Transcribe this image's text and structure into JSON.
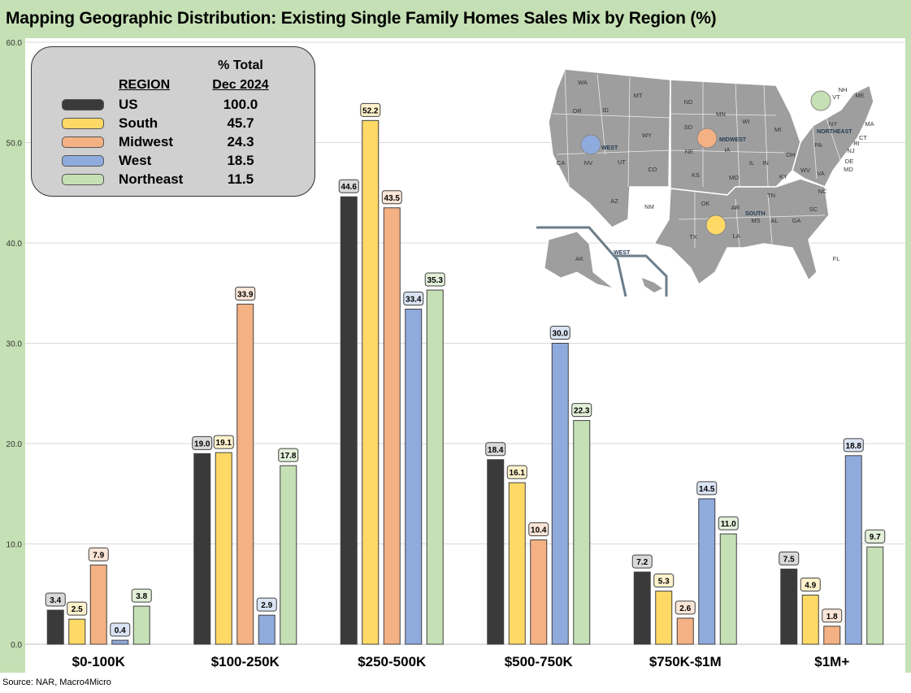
{
  "title": "Mapping Geographic Distribution: Existing Single Family Homes Sales Mix by Region (%)",
  "source": "Source: NAR, Macro4Micro",
  "legend": {
    "region_header": "REGION",
    "value_header_line1": "% Total",
    "value_header_line2": "Dec 2024",
    "entries": [
      {
        "name": "US",
        "value": "100.0",
        "color": "#3a3a3a"
      },
      {
        "name": "South",
        "value": "45.7",
        "color": "#ffd966"
      },
      {
        "name": "Midwest",
        "value": "24.3",
        "color": "#f4b183"
      },
      {
        "name": "West",
        "value": "18.5",
        "color": "#8faadc"
      },
      {
        "name": "Northeast",
        "value": "11.5",
        "color": "#c5e0b4"
      }
    ]
  },
  "map": {
    "region_labels": [
      "WEST",
      "MIDWEST",
      "NORTHEAST",
      "SOUTH",
      "WEST"
    ],
    "state_labels": [
      "WA",
      "OR",
      "ID",
      "MT",
      "WY",
      "CA",
      "NV",
      "UT",
      "CO",
      "AZ",
      "NM",
      "ND",
      "SD",
      "NE",
      "KS",
      "OK",
      "TX",
      "MN",
      "IA",
      "MO",
      "AR",
      "LA",
      "WI",
      "IL",
      "MI",
      "IN",
      "OH",
      "KY",
      "TN",
      "MS",
      "AL",
      "GA",
      "FL",
      "SC",
      "NC",
      "VA",
      "WV",
      "PA",
      "NY",
      "VT",
      "NH",
      "ME",
      "MA",
      "CT",
      "RI",
      "NJ",
      "DE",
      "MD",
      "AK"
    ],
    "markers": [
      {
        "region": "Northeast",
        "color": "#c5e0b4"
      },
      {
        "region": "Midwest",
        "color": "#f4b183"
      },
      {
        "region": "West",
        "color": "#8faadc"
      },
      {
        "region": "South",
        "color": "#ffd966"
      }
    ]
  },
  "chart_data": {
    "type": "bar",
    "title": "Mapping Geographic Distribution: Existing Single Family Homes Sales Mix by Region (%)",
    "xlabel": "",
    "ylabel": "",
    "ylim": [
      0,
      60
    ],
    "yticks": [
      "0.0",
      "10.0",
      "20.0",
      "30.0",
      "40.0",
      "50.0",
      "60.0"
    ],
    "grid": true,
    "legend_position": "top-left",
    "categories": [
      "$0-100K",
      "$100-250K",
      "$250-500K",
      "$500-750K",
      "$750K-$1M",
      "$1M+"
    ],
    "series": [
      {
        "name": "US",
        "color": "#3a3a3a",
        "label_bg": "#d9d9d9",
        "values": [
          3.4,
          19.0,
          44.6,
          18.4,
          7.2,
          7.5
        ],
        "labels": [
          "3.4",
          "19.0",
          "44.6",
          "18.4",
          "7.2",
          "7.5"
        ]
      },
      {
        "name": "South",
        "color": "#ffd966",
        "label_bg": "#fff2cc",
        "values": [
          2.5,
          19.1,
          52.2,
          16.1,
          5.3,
          4.9
        ],
        "labels": [
          "2.5",
          "19.1",
          "52.2",
          "16.1",
          "5.3",
          "4.9"
        ]
      },
      {
        "name": "Midwest",
        "color": "#f4b183",
        "label_bg": "#fbe5d6",
        "values": [
          7.9,
          33.9,
          43.5,
          10.4,
          2.6,
          1.8
        ],
        "labels": [
          "7.9",
          "33.9",
          "43.5",
          "10.4",
          "2.6",
          "1.8"
        ]
      },
      {
        "name": "West",
        "color": "#8faadc",
        "label_bg": "#dae3f3",
        "values": [
          0.4,
          2.9,
          33.4,
          30.0,
          14.5,
          18.8
        ],
        "labels": [
          "0.4",
          "2.9",
          "33.4",
          "30.0",
          "14.5",
          "18.8"
        ]
      },
      {
        "name": "Northeast",
        "color": "#c5e0b4",
        "label_bg": "#e2f0d9",
        "values": [
          3.8,
          17.8,
          35.3,
          22.3,
          11.0,
          9.7
        ],
        "labels": [
          "3.8",
          "17.8",
          "35.3",
          "22.3",
          "11.0",
          "9.7"
        ]
      }
    ]
  }
}
